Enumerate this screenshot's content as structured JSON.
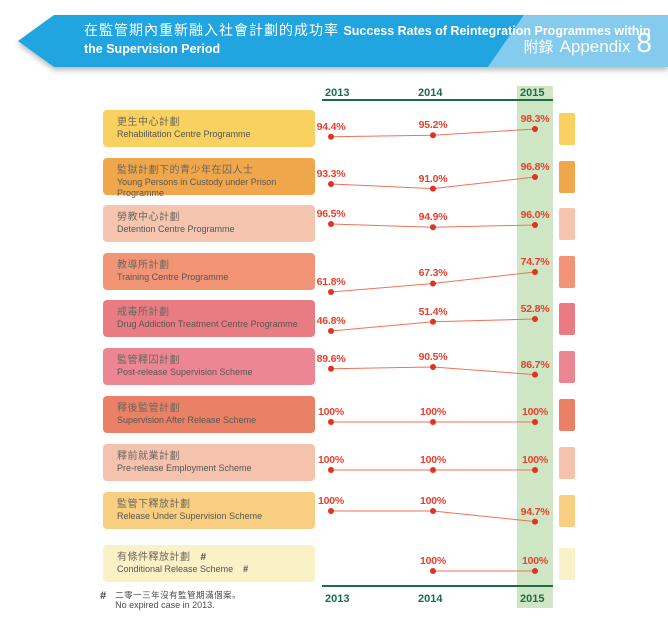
{
  "header": {
    "title_zh": "在監管期內重新融入社會計劃的成功率",
    "title_en": "Success Rates of Reintegration Programmes within the Supervision Period",
    "appendix_zh": "附錄",
    "appendix_en": "Appendix",
    "appendix_number": "8",
    "banner_color": "#21a5e1",
    "banner_light_color": "#84cbee"
  },
  "chart_data": {
    "type": "line",
    "categories": [
      "2013",
      "2014",
      "2015"
    ],
    "highlight_category": "2015",
    "value_suffix": "%",
    "ylim": [
      0,
      100
    ],
    "grid": false,
    "legend_position": "none",
    "accent_red": "#e8402d",
    "dot_color": "#e03323",
    "line_color": "#ef7258",
    "axis_green": "#1e6b4a",
    "band_green": "#cfe6c4",
    "series": [
      {
        "label_zh": "更生中心計劃",
        "label_en": "Rehabilitation Centre Programme",
        "color": "#f9d161",
        "values": [
          94.4,
          95.2,
          98.3
        ],
        "display": [
          "94.4%",
          "95.2%",
          "98.3%"
        ]
      },
      {
        "label_zh": "監獄計劃下的青少年在囚人士",
        "label_en": "Young Persons in Custody under Prison Programme",
        "color": "#f0a74c",
        "values": [
          93.3,
          91.0,
          96.8
        ],
        "display": [
          "93.3%",
          "91.0%",
          "96.8%"
        ]
      },
      {
        "label_zh": "勞教中心計劃",
        "label_en": "Detention Centre Programme",
        "color": "#f6c5b0",
        "values": [
          96.5,
          94.9,
          96.0
        ],
        "display": [
          "96.5%",
          "94.9%",
          "96.0%"
        ]
      },
      {
        "label_zh": "教導所計劃",
        "label_en": "Training Centre Programme",
        "color": "#f29577",
        "values": [
          61.8,
          67.3,
          74.7
        ],
        "display": [
          "61.8%",
          "67.3%",
          "74.7%"
        ]
      },
      {
        "label_zh": "戒毒所計劃",
        "label_en": "Drug Addiction Treatment Centre Programme",
        "color": "#e97c83",
        "values": [
          46.8,
          51.4,
          52.8
        ],
        "display": [
          "46.8%",
          "51.4%",
          "52.8%"
        ]
      },
      {
        "label_zh": "監管釋囚計劃",
        "label_en": "Post-release Supervision Scheme",
        "color": "#ed8693",
        "values": [
          89.6,
          90.5,
          86.7
        ],
        "display": [
          "89.6%",
          "90.5%",
          "86.7%"
        ]
      },
      {
        "label_zh": "釋後監管計劃",
        "label_en": "Supervision After Release Scheme",
        "color": "#ea8166",
        "values": [
          100,
          100,
          100
        ],
        "display": [
          "100%",
          "100%",
          "100%"
        ]
      },
      {
        "label_zh": "釋前就業計劃",
        "label_en": "Pre-release Employment Scheme",
        "color": "#f5c2ae",
        "values": [
          100,
          100,
          100
        ],
        "display": [
          "100%",
          "100%",
          "100%"
        ]
      },
      {
        "label_zh": "監管下釋放計劃",
        "label_en": "Release Under Supervision Scheme",
        "color": "#f8ce81",
        "values": [
          100,
          100,
          94.7
        ],
        "display": [
          "100%",
          "100%",
          "94.7%"
        ]
      },
      {
        "label_zh": "有條件釋放計劃",
        "label_en": "Conditional Release Scheme",
        "marker": "#",
        "color": "#faf1c6",
        "values": [
          null,
          100,
          100
        ],
        "display": [
          "",
          "100%",
          "100%"
        ]
      }
    ],
    "footnote_marker": "#",
    "footnote_zh": "二零一三年沒有監管期滿個案。",
    "footnote_en": "No expired case in 2013."
  }
}
